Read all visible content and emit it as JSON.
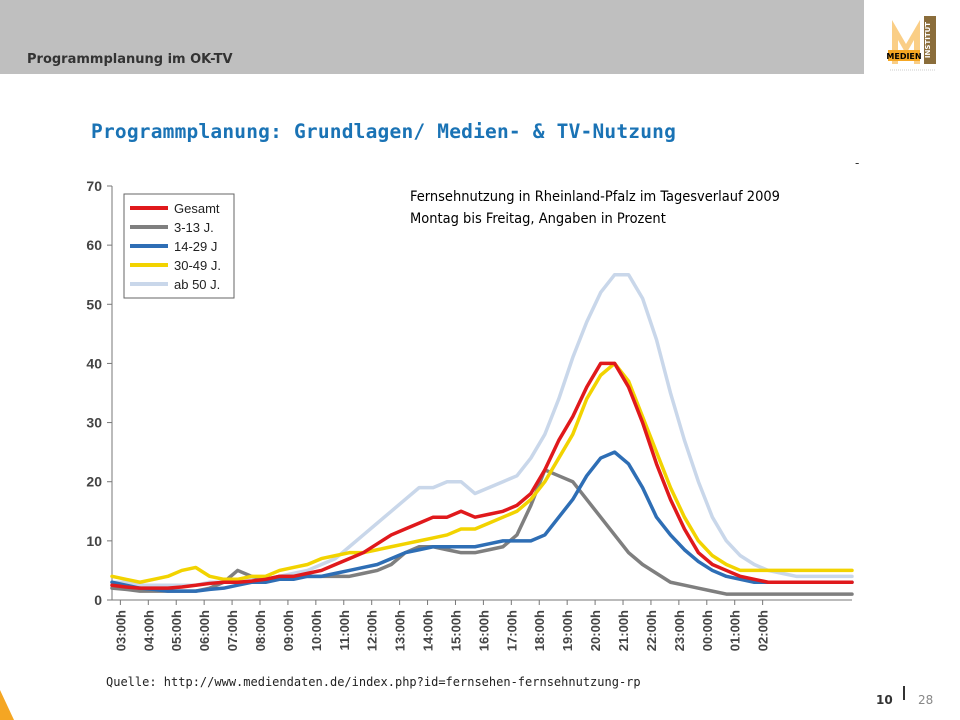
{
  "header": {
    "title": "Programmplanung im OK-TV",
    "logo_text_top": "MEDIEN",
    "logo_text_side": "INSTITUT",
    "colors": {
      "bar": "#bfbfbf",
      "logo": "#f5a623"
    }
  },
  "slide": {
    "title": "Programmplanung: Grundlagen/ Medien- & TV-Nutzung",
    "dash": "-",
    "source": "Quelle: http://www.mediendaten.de/index.php?id=fernsehen-fernsehnutzung-rp",
    "page_number": "10",
    "page_total": "28"
  },
  "chart_caption": {
    "line1": "Fernsehnutzung in Rheinland-Pfalz im Tagesverlauf 2009",
    "line2": "Montag bis Freitag, Angaben in Prozent"
  },
  "chart_data": {
    "type": "line",
    "title": "Fernsehnutzung in Rheinland-Pfalz im Tagesverlauf 2009",
    "subtitle": "Montag bis Freitag, Angaben in Prozent",
    "ylim": [
      0,
      70
    ],
    "yticks": [
      0,
      10,
      20,
      30,
      40,
      50,
      60,
      70
    ],
    "grid": false,
    "legend": "top-left",
    "xticks": [
      "03:00h",
      "04:00h",
      "05:00h",
      "06:00h",
      "07:00h",
      "08:00h",
      "09:00h",
      "10:00h",
      "11:00h",
      "12:00h",
      "13:00h",
      "14:00h",
      "15:00h",
      "16:00h",
      "17:00h",
      "18:00h",
      "19:00h",
      "20:00h",
      "21:00h",
      "22:00h",
      "23:00h",
      "00:00h",
      "01:00h",
      "02:00h"
    ],
    "x_hours": [
      0,
      0.5,
      1,
      1.5,
      2,
      2.5,
      3,
      3.5,
      4,
      4.5,
      5,
      5.5,
      6,
      6.5,
      7,
      7.5,
      8,
      8.5,
      9,
      9.5,
      10,
      10.5,
      11,
      11.5,
      12,
      12.5,
      13,
      13.5,
      14,
      14.5,
      15,
      15.5,
      16,
      16.5,
      17,
      17.5,
      18,
      18.5,
      19,
      19.5,
      20,
      20.5,
      21,
      21.5,
      22,
      22.5,
      23,
      23.5,
      24,
      24.5,
      25,
      25.5,
      26,
      26.5
    ],
    "series": [
      {
        "name": "Gesamt",
        "color": "#e0191c",
        "values": [
          2.5,
          2.2,
          2,
          2,
          2,
          2.2,
          2.5,
          2.8,
          3,
          3,
          3.2,
          3.5,
          4,
          4,
          4.5,
          5,
          6,
          7,
          8,
          9.5,
          11,
          12,
          13,
          14,
          14,
          15,
          14,
          14.5,
          15,
          16,
          18,
          22,
          27,
          31,
          36,
          40,
          40,
          36,
          30,
          23,
          17,
          12,
          8,
          6,
          5,
          4,
          3.5,
          3,
          3,
          3,
          3,
          3,
          3,
          3
        ]
      },
      {
        "name": "3-13 J.",
        "color": "#7f7f7f",
        "values": [
          2,
          1.8,
          1.5,
          1.5,
          1.5,
          1.5,
          1.5,
          2,
          3,
          5,
          4,
          3.5,
          4,
          4,
          4,
          4,
          4,
          4,
          4.5,
          5,
          6,
          8,
          9,
          9,
          8.5,
          8,
          8,
          8.5,
          9,
          11,
          16,
          22,
          21,
          20,
          17,
          14,
          11,
          8,
          6,
          4.5,
          3,
          2.5,
          2,
          1.5,
          1,
          1,
          1,
          1,
          1,
          1,
          1,
          1,
          1,
          1
        ]
      },
      {
        "name": "14-29 J",
        "color": "#2e6eb5",
        "values": [
          3,
          2.5,
          2,
          1.8,
          1.5,
          1.5,
          1.5,
          1.8,
          2,
          2.5,
          3,
          3,
          3.5,
          3.5,
          4,
          4,
          4.5,
          5,
          5.5,
          6,
          7,
          8,
          8.5,
          9,
          9,
          9,
          9,
          9.5,
          10,
          10,
          10,
          11,
          14,
          17,
          21,
          24,
          25,
          23,
          19,
          14,
          11,
          8.5,
          6.5,
          5,
          4,
          3.5,
          3,
          3,
          3,
          3,
          3,
          3,
          3,
          3
        ]
      },
      {
        "name": "30-49 J.",
        "color": "#f2d300",
        "values": [
          4,
          3.5,
          3,
          3.5,
          4,
          5,
          5.5,
          4,
          3.5,
          3.5,
          4,
          4,
          5,
          5.5,
          6,
          7,
          7.5,
          8,
          8,
          8.5,
          9,
          9.5,
          10,
          10.5,
          11,
          12,
          12,
          13,
          14,
          15,
          17,
          20,
          24,
          28,
          34,
          38,
          40,
          37,
          31,
          25,
          19,
          14,
          10,
          7.5,
          6,
          5,
          5,
          5,
          5,
          5,
          5,
          5,
          5,
          5
        ]
      },
      {
        "name": "ab 50 J.",
        "color": "#c9d7ea",
        "values": [
          3,
          3,
          2.5,
          2.5,
          2.5,
          2.5,
          2.5,
          3,
          3,
          3,
          3.5,
          3.5,
          4,
          4.5,
          5,
          6,
          7,
          9,
          11,
          13,
          15,
          17,
          19,
          19,
          20,
          20,
          18,
          19,
          20,
          21,
          24,
          28,
          34,
          41,
          47,
          52,
          55,
          55,
          51,
          44,
          35,
          27,
          20,
          14,
          10,
          7.5,
          6,
          5,
          4.5,
          4,
          4,
          4,
          4,
          4
        ]
      }
    ]
  }
}
